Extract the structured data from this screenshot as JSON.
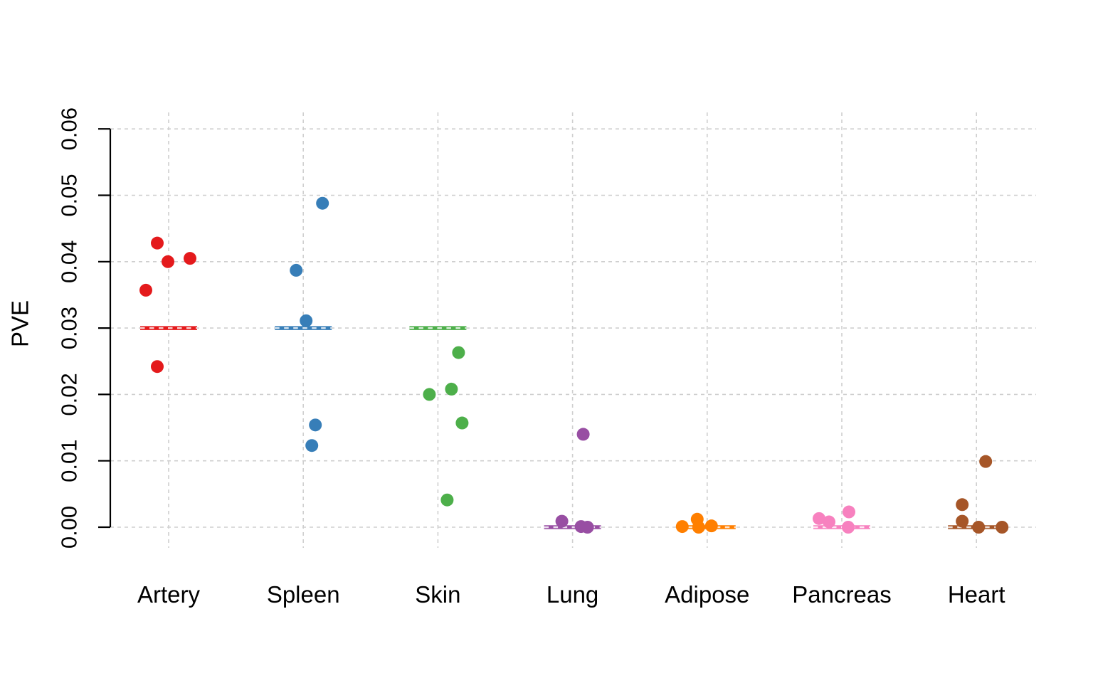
{
  "chart_data": {
    "type": "scatter",
    "title": "",
    "xlabel": "",
    "ylabel": "PVE",
    "ylim": [
      0.0,
      0.06
    ],
    "yticks": [
      "0.00",
      "0.01",
      "0.02",
      "0.03",
      "0.04",
      "0.05",
      "0.06"
    ],
    "grid": {
      "style": "dashed",
      "color": "#CFCFCF",
      "horizontal": true,
      "vertical": true
    },
    "legend_position": "none",
    "point_shape": "filled-circle",
    "categories": [
      "Artery",
      "Spleen",
      "Skin",
      "Lung",
      "Adipose",
      "Pancreas",
      "Heart"
    ],
    "series": [
      {
        "name": "Artery",
        "color": "#E41A1C",
        "reference_line": 0.03,
        "points": [
          {
            "value": 0.0428,
            "dx": -16
          },
          {
            "value": 0.0405,
            "dx": 30
          },
          {
            "value": 0.04,
            "dx": -1
          },
          {
            "value": 0.0357,
            "dx": -32
          },
          {
            "value": 0.0242,
            "dx": -16
          }
        ]
      },
      {
        "name": "Spleen",
        "color": "#377EB8",
        "reference_line": 0.03,
        "points": [
          {
            "value": 0.0488,
            "dx": 27
          },
          {
            "value": 0.0387,
            "dx": -10
          },
          {
            "value": 0.0311,
            "dx": 4
          },
          {
            "value": 0.0154,
            "dx": 17
          },
          {
            "value": 0.0123,
            "dx": 12
          }
        ]
      },
      {
        "name": "Skin",
        "color": "#4DAF4A",
        "reference_line": 0.03,
        "points": [
          {
            "value": 0.0263,
            "dx": 29
          },
          {
            "value": 0.0208,
            "dx": 19
          },
          {
            "value": 0.02,
            "dx": -12
          },
          {
            "value": 0.0157,
            "dx": 34
          },
          {
            "value": 0.0041,
            "dx": 13
          }
        ]
      },
      {
        "name": "Lung",
        "color": "#984EA3",
        "reference_line": 0.0,
        "points": [
          {
            "value": 0.014,
            "dx": 15
          },
          {
            "value": 0.0009,
            "dx": -15
          },
          {
            "value": 0.0001,
            "dx": 12
          },
          {
            "value": 0.0,
            "dx": 21
          }
        ]
      },
      {
        "name": "Adipose",
        "color": "#FF7F00",
        "reference_line": 0.0,
        "points": [
          {
            "value": 0.0012,
            "dx": -14
          },
          {
            "value": 0.0002,
            "dx": 6
          },
          {
            "value": 0.0001,
            "dx": -35
          },
          {
            "value": 0.0,
            "dx": -12
          }
        ]
      },
      {
        "name": "Pancreas",
        "color": "#F781BF",
        "reference_line": 0.0,
        "points": [
          {
            "value": 0.0023,
            "dx": 10
          },
          {
            "value": 0.0013,
            "dx": -32
          },
          {
            "value": 0.0008,
            "dx": -18
          },
          {
            "value": 0.0,
            "dx": 9
          }
        ]
      },
      {
        "name": "Heart",
        "color": "#A65628",
        "reference_line": 0.0,
        "points": [
          {
            "value": 0.0099,
            "dx": 13
          },
          {
            "value": 0.0034,
            "dx": -20
          },
          {
            "value": 0.0009,
            "dx": -20
          },
          {
            "value": 0.0,
            "dx": 3
          },
          {
            "value": 0.0,
            "dx": 36
          }
        ]
      }
    ]
  }
}
